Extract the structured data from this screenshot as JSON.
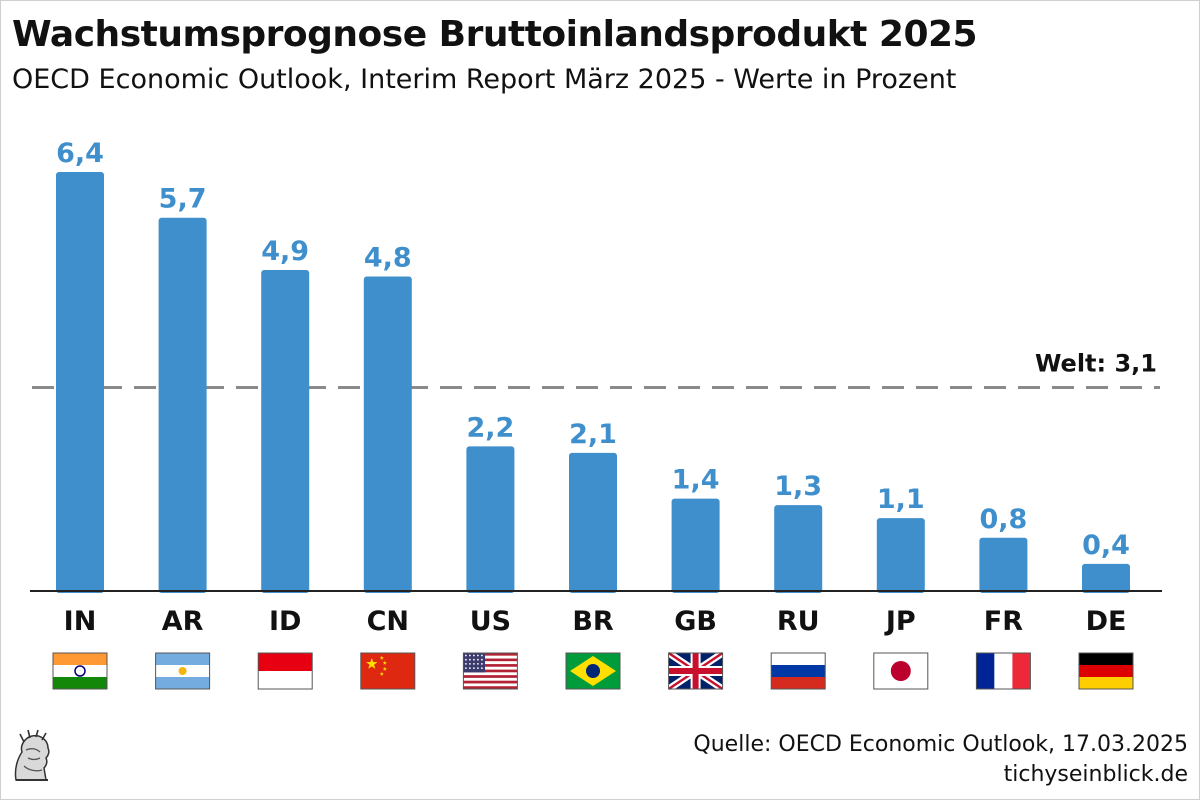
{
  "title": "Wachstumsprognose Bruttoinlandsprodukt 2025",
  "subtitle": "OECD Economic Outlook, Interim Report März 2025 - Werte in Prozent",
  "source": "Quelle: OECD Economic Outlook, 17.03.2025",
  "site": "tichyseinblick.de",
  "colors": {
    "bar": "#3e8fcc",
    "label": "#3e8fcc",
    "reference": "#8a8a8a"
  },
  "chart_data": {
    "type": "bar",
    "categories": [
      "IN",
      "AR",
      "ID",
      "CN",
      "US",
      "BR",
      "GB",
      "RU",
      "JP",
      "FR",
      "DE"
    ],
    "values": [
      6.4,
      5.7,
      4.9,
      4.8,
      2.2,
      2.1,
      1.4,
      1.3,
      1.1,
      0.8,
      0.4
    ],
    "value_labels": [
      "6,4",
      "5,7",
      "4,9",
      "4,8",
      "2,2",
      "2,1",
      "1,4",
      "1,3",
      "1,1",
      "0,8",
      "0,4"
    ],
    "flags": [
      "india-flag",
      "argentina-flag",
      "indonesia-flag",
      "china-flag",
      "usa-flag",
      "brazil-flag",
      "uk-flag",
      "russia-flag",
      "japan-flag",
      "france-flag",
      "germany-flag"
    ],
    "reference_line": {
      "label": "Welt: 3,1",
      "value": 3.1,
      "style": "dashed"
    },
    "ylim": [
      0,
      7
    ],
    "grid": false,
    "legend": "none"
  }
}
